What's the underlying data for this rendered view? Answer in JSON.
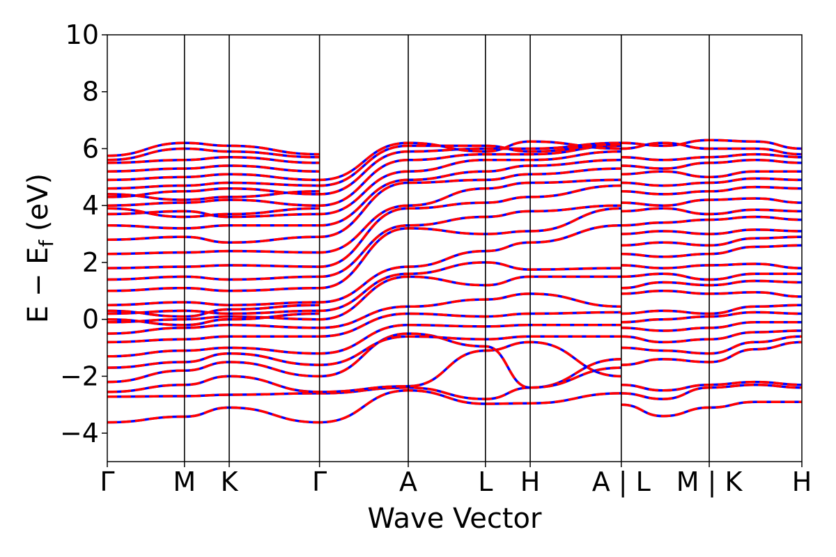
{
  "chart_data": {
    "type": "line",
    "title": "",
    "xlabel": "Wave Vector",
    "ylabel": "E − E",
    "ylabel_subscript": "f",
    "ylabel_unit": " (eV)",
    "ylim": [
      -5,
      10
    ],
    "y_ticks": [
      10,
      8,
      6,
      4,
      2,
      0,
      -2,
      -4
    ],
    "y_tick_labels": [
      "10",
      "8",
      "6",
      "4",
      "2",
      "0",
      "−2",
      "−4"
    ],
    "x_range": [
      0,
      9.0
    ],
    "k_ticks": [
      {
        "x": 0.0,
        "label": "Γ"
      },
      {
        "x": 1.0,
        "label": "M"
      },
      {
        "x": 1.58,
        "label": "K"
      },
      {
        "x": 2.75,
        "label": "Γ"
      },
      {
        "x": 3.9,
        "label": "A"
      },
      {
        "x": 4.9,
        "label": "L"
      },
      {
        "x": 5.48,
        "label": "H"
      },
      {
        "x": 6.66,
        "label": "A | L"
      },
      {
        "x": 7.8,
        "label": "M | K"
      },
      {
        "x": 9.0,
        "label": "H"
      }
    ],
    "band_gaps_segments": [
      6.66,
      7.8
    ],
    "series": [
      {
        "color": "#0000ff",
        "style": "solid"
      },
      {
        "color": "#ff0000",
        "style": "dashed"
      }
    ],
    "bands": [
      {
        "n": [
          [
            0,
            -3.62
          ],
          [
            1.0,
            -3.42
          ],
          [
            1.58,
            -3.1
          ],
          [
            2.75,
            -3.62
          ],
          [
            3.9,
            -2.5
          ],
          [
            4.9,
            -2.97
          ],
          [
            5.48,
            -2.95
          ],
          [
            6.66,
            -2.6
          ]
        ]
      },
      {
        "n": [
          [
            0,
            -2.72
          ],
          [
            1.0,
            -2.7
          ],
          [
            1.58,
            -2.65
          ],
          [
            2.75,
            -2.6
          ],
          [
            3.9,
            -2.4
          ],
          [
            4.9,
            -2.8
          ],
          [
            5.48,
            -2.4
          ],
          [
            6.66,
            -1.4
          ]
        ]
      },
      {
        "n": [
          [
            0,
            -2.55
          ],
          [
            1.0,
            -2.3
          ],
          [
            1.58,
            -2.0
          ],
          [
            2.75,
            -2.55
          ],
          [
            3.9,
            -2.35
          ],
          [
            4.9,
            -1.1
          ],
          [
            5.48,
            -0.8
          ],
          [
            6.66,
            -2.0
          ]
        ]
      },
      {
        "n": [
          [
            0,
            -2.2
          ],
          [
            1.0,
            -1.8
          ],
          [
            1.58,
            -1.5
          ],
          [
            2.75,
            -2.0
          ],
          [
            3.9,
            -0.5
          ],
          [
            4.9,
            -0.95
          ],
          [
            5.48,
            -2.4
          ],
          [
            6.66,
            -1.7
          ]
        ]
      },
      {
        "n": [
          [
            0,
            -1.7
          ],
          [
            1.0,
            -1.5
          ],
          [
            1.58,
            -1.2
          ],
          [
            2.75,
            -1.6
          ],
          [
            3.9,
            -0.6
          ],
          [
            4.9,
            -0.7
          ],
          [
            5.48,
            -0.6
          ],
          [
            6.66,
            -0.6
          ]
        ]
      },
      {
        "n": [
          [
            0,
            -1.3
          ],
          [
            1.0,
            -1.1
          ],
          [
            1.58,
            -1.0
          ],
          [
            2.75,
            -1.2
          ],
          [
            3.9,
            -0.2
          ],
          [
            4.9,
            -0.25
          ],
          [
            5.48,
            -0.2
          ],
          [
            6.66,
            -0.2
          ]
        ]
      },
      {
        "n": [
          [
            0,
            -0.8
          ],
          [
            1.0,
            -0.7
          ],
          [
            1.58,
            -0.6
          ],
          [
            2.75,
            -0.6
          ],
          [
            3.9,
            0.2
          ],
          [
            4.9,
            0.1
          ],
          [
            5.48,
            0.2
          ],
          [
            6.66,
            0.25
          ]
        ]
      },
      {
        "n": [
          [
            0,
            -0.5
          ],
          [
            1.0,
            -0.3
          ],
          [
            1.58,
            -0.2
          ],
          [
            2.75,
            -0.3
          ],
          [
            3.9,
            0.45
          ],
          [
            4.9,
            0.7
          ],
          [
            5.48,
            0.9
          ],
          [
            6.66,
            0.45
          ]
        ]
      },
      {
        "n": [
          [
            0,
            -0.1
          ],
          [
            1.0,
            0.0
          ],
          [
            1.58,
            0.1
          ],
          [
            2.75,
            0.0
          ],
          [
            3.9,
            1.5
          ],
          [
            4.9,
            1.2
          ],
          [
            5.48,
            1.5
          ],
          [
            6.66,
            1.5
          ]
        ]
      },
      {
        "n": [
          [
            0,
            0.2
          ],
          [
            1.0,
            0.3
          ],
          [
            1.58,
            0.2
          ],
          [
            2.75,
            0.3
          ],
          [
            3.9,
            1.6
          ],
          [
            4.9,
            2.0
          ],
          [
            5.48,
            1.75
          ],
          [
            6.66,
            1.8
          ]
        ]
      },
      {
        "n": [
          [
            0,
            0.5
          ],
          [
            1.0,
            0.6
          ],
          [
            1.58,
            0.5
          ],
          [
            2.75,
            0.6
          ],
          [
            3.9,
            1.85
          ],
          [
            4.9,
            2.4
          ],
          [
            5.48,
            2.7
          ],
          [
            6.66,
            3.3
          ]
        ]
      },
      {
        "n": [
          [
            0,
            1.0
          ],
          [
            1.0,
            1.1
          ],
          [
            1.58,
            1.0
          ],
          [
            2.75,
            1.1
          ],
          [
            3.9,
            3.2
          ],
          [
            4.9,
            3.0
          ],
          [
            5.48,
            3.1
          ],
          [
            6.66,
            3.9
          ]
        ]
      },
      {
        "n": [
          [
            0,
            1.4
          ],
          [
            1.0,
            1.5
          ],
          [
            1.58,
            1.4
          ],
          [
            2.75,
            1.5
          ],
          [
            3.9,
            3.3
          ],
          [
            4.9,
            3.6
          ],
          [
            5.48,
            3.8
          ],
          [
            6.66,
            4.0
          ]
        ]
      },
      {
        "n": [
          [
            0,
            1.8
          ],
          [
            1.0,
            1.85
          ],
          [
            1.58,
            1.9
          ],
          [
            2.75,
            1.85
          ],
          [
            3.9,
            3.9
          ],
          [
            4.9,
            4.1
          ],
          [
            5.48,
            4.3
          ],
          [
            6.66,
            4.7
          ]
        ]
      },
      {
        "n": [
          [
            0,
            2.3
          ],
          [
            1.0,
            2.35
          ],
          [
            1.58,
            2.4
          ],
          [
            2.75,
            2.35
          ],
          [
            3.9,
            4.0
          ],
          [
            4.9,
            4.6
          ],
          [
            5.48,
            4.8
          ],
          [
            6.66,
            4.9
          ]
        ]
      },
      {
        "n": [
          [
            0,
            2.8
          ],
          [
            1.0,
            2.9
          ],
          [
            1.58,
            2.7
          ],
          [
            2.75,
            2.9
          ],
          [
            3.9,
            4.8
          ],
          [
            4.9,
            4.9
          ],
          [
            5.48,
            5.1
          ],
          [
            6.66,
            5.3
          ]
        ]
      },
      {
        "n": [
          [
            0,
            3.3
          ],
          [
            1.0,
            3.2
          ],
          [
            1.58,
            3.3
          ],
          [
            2.75,
            3.3
          ],
          [
            3.9,
            4.9
          ],
          [
            4.9,
            5.2
          ],
          [
            5.48,
            5.4
          ],
          [
            6.66,
            5.6
          ]
        ]
      },
      {
        "n": [
          [
            0,
            3.7
          ],
          [
            1.0,
            3.8
          ],
          [
            1.58,
            3.6
          ],
          [
            2.75,
            3.7
          ],
          [
            3.9,
            5.2
          ],
          [
            4.9,
            5.6
          ],
          [
            5.48,
            5.6
          ],
          [
            6.66,
            5.9
          ]
        ]
      },
      {
        "n": [
          [
            0,
            4.0
          ],
          [
            1.0,
            4.1
          ],
          [
            1.58,
            4.2
          ],
          [
            2.75,
            4.0
          ],
          [
            3.9,
            5.6
          ],
          [
            4.9,
            5.8
          ],
          [
            5.48,
            5.8
          ],
          [
            6.66,
            6.1
          ]
        ]
      },
      {
        "n": [
          [
            0,
            4.3
          ],
          [
            1.0,
            4.5
          ],
          [
            1.58,
            4.6
          ],
          [
            2.75,
            4.4
          ],
          [
            3.9,
            5.9
          ],
          [
            4.9,
            6.0
          ],
          [
            5.48,
            6.0
          ],
          [
            6.66,
            6.2
          ]
        ]
      },
      {
        "n": [
          [
            0,
            4.6
          ],
          [
            1.0,
            4.7
          ],
          [
            1.58,
            4.8
          ],
          [
            2.75,
            4.7
          ],
          [
            3.9,
            6.1
          ],
          [
            4.9,
            6.1
          ],
          [
            5.48,
            5.9
          ],
          [
            6.66,
            6.15
          ]
        ]
      },
      {
        "n": [
          [
            0,
            4.9
          ],
          [
            1.0,
            5.0
          ],
          [
            1.58,
            5.1
          ],
          [
            2.75,
            4.9
          ],
          [
            3.9,
            6.2
          ],
          [
            4.9,
            5.9
          ],
          [
            5.48,
            6.25
          ],
          [
            6.66,
            6.0
          ]
        ]
      },
      {
        "n": [
          [
            0,
            5.2
          ],
          [
            1.0,
            5.3
          ],
          [
            1.58,
            5.4
          ],
          [
            2.75,
            5.2
          ]
        ]
      },
      {
        "n": [
          [
            0,
            5.5
          ],
          [
            1.0,
            5.6
          ],
          [
            1.58,
            5.7
          ],
          [
            2.75,
            5.5
          ]
        ]
      },
      {
        "n": [
          [
            0,
            5.75
          ],
          [
            1.0,
            6.2
          ],
          [
            1.58,
            6.1
          ],
          [
            2.75,
            5.8
          ]
        ]
      },
      {
        "n": [
          [
            0,
            5.6
          ],
          [
            1.0,
            6.0
          ],
          [
            1.58,
            5.9
          ],
          [
            2.75,
            5.7
          ]
        ]
      },
      {
        "n": [
          [
            0,
            4.4
          ],
          [
            1.0,
            4.2
          ],
          [
            1.58,
            4.3
          ],
          [
            2.75,
            4.5
          ]
        ]
      },
      {
        "n": [
          [
            0,
            3.9
          ],
          [
            1.0,
            3.6
          ],
          [
            1.58,
            3.7
          ],
          [
            2.75,
            3.9
          ]
        ]
      },
      {
        "n": [
          [
            0,
            0.0
          ],
          [
            1.0,
            -0.2
          ],
          [
            1.58,
            0.0
          ],
          [
            2.75,
            0.2
          ]
        ]
      },
      {
        "n": [
          [
            0,
            0.3
          ],
          [
            1.0,
            0.1
          ],
          [
            1.58,
            0.35
          ],
          [
            2.75,
            0.5
          ]
        ]
      }
    ],
    "right_bands": [
      [
        -3.0,
        -3.4,
        -3.1,
        -2.9
      ],
      [
        -2.6,
        -2.8,
        -2.4,
        -2.4
      ],
      [
        -2.3,
        -2.5,
        -2.3,
        -2.3
      ],
      [
        -1.6,
        -1.4,
        -1.5,
        -0.8
      ],
      [
        -1.0,
        -1.1,
        -1.2,
        -0.6
      ],
      [
        -0.6,
        -0.8,
        -0.7,
        -0.4
      ],
      [
        -0.3,
        -0.4,
        -0.3,
        -0.1
      ],
      [
        -0.1,
        0.0,
        0.1,
        0.2
      ],
      [
        0.2,
        0.3,
        0.2,
        0.5
      ],
      [
        0.9,
        1.0,
        0.9,
        0.8
      ],
      [
        1.1,
        1.3,
        1.2,
        1.3
      ],
      [
        1.5,
        1.6,
        1.4,
        1.6
      ],
      [
        1.9,
        1.8,
        1.9,
        1.8
      ],
      [
        2.3,
        2.2,
        2.3,
        2.6
      ],
      [
        2.6,
        2.7,
        2.6,
        2.9
      ],
      [
        3.0,
        3.1,
        3.0,
        3.1
      ],
      [
        3.3,
        3.4,
        3.5,
        3.5
      ],
      [
        3.8,
        3.9,
        3.7,
        3.8
      ],
      [
        4.1,
        4.0,
        4.2,
        4.1
      ],
      [
        4.5,
        4.4,
        4.5,
        4.6
      ],
      [
        4.8,
        4.7,
        4.8,
        4.9
      ],
      [
        5.1,
        5.2,
        5.0,
        5.2
      ],
      [
        5.4,
        5.3,
        5.5,
        5.5
      ],
      [
        5.7,
        5.6,
        5.7,
        5.7
      ],
      [
        6.0,
        6.2,
        6.0,
        5.8
      ],
      [
        6.2,
        6.1,
        6.3,
        6.0
      ]
    ]
  }
}
